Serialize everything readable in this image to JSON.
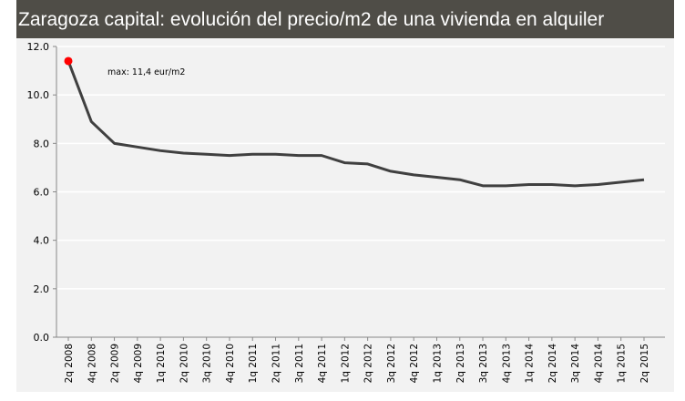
{
  "chart_data": {
    "type": "line",
    "title": "Zaragoza capital: evolución del precio/m2 de una vivienda en alquiler",
    "categories": [
      "2q 2008",
      "4q 2008",
      "2q 2009",
      "4q 2009",
      "1q 2010",
      "2q 2010",
      "3q 2010",
      "4q 2010",
      "1q 2011",
      "2q 2011",
      "3q 2011",
      "4q 2011",
      "1q 2012",
      "2q 2012",
      "3q 2012",
      "4q 2012",
      "1q 2013",
      "2q 2013",
      "3q 2013",
      "4q 2013",
      "1q 2014",
      "2q 2014",
      "3q 2014",
      "4q 2014",
      "1q 2015",
      "2q 2015"
    ],
    "values": [
      11.4,
      8.9,
      8.0,
      7.85,
      7.7,
      7.6,
      7.55,
      7.5,
      7.55,
      7.55,
      7.5,
      7.5,
      7.2,
      7.15,
      6.85,
      6.7,
      6.6,
      6.5,
      6.25,
      6.25,
      6.3,
      6.3,
      6.25,
      6.3,
      6.4,
      6.5
    ],
    "ylim": [
      0,
      12
    ],
    "yticks": [
      "0.0",
      "2.0",
      "4.0",
      "6.0",
      "8.0",
      "10.0",
      "12.0"
    ],
    "grid": true,
    "line_color": "#404040",
    "max_marker_color": "#ff0000",
    "annotation": "max: 11,4 eur/m2"
  }
}
